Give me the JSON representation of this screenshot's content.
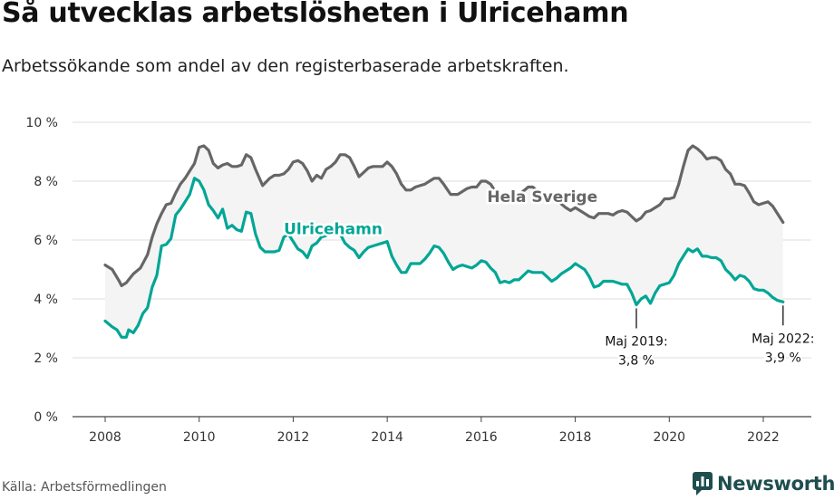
{
  "title": "Så utvecklas arbetslösheten i Ulricehamn",
  "subtitle": "Arbetssökande som andel av den registerbaserade arbetskraften.",
  "source": "Källa: Arbetsförmedlingen",
  "logo": {
    "text": "Newsworthy",
    "icon": "newsworthy-logo-icon",
    "color": "#1f4e4f"
  },
  "chart_data": {
    "type": "line",
    "title": "",
    "xlabel": "",
    "ylabel": "",
    "xlim": [
      2007.6,
      2023.1
    ],
    "ylim": [
      0,
      10
    ],
    "grid": true,
    "y_ticks": [
      0,
      2,
      4,
      6,
      8,
      10
    ],
    "y_tick_labels": [
      "0 %",
      "2 %",
      "4 %",
      "6 %",
      "8 %",
      "10 %"
    ],
    "x_ticks": [
      2008,
      2010,
      2012,
      2014,
      2016,
      2018,
      2020,
      2022
    ],
    "x_tick_labels": [
      "2008",
      "2010",
      "2012",
      "2014",
      "2016",
      "2018",
      "2020",
      "2022"
    ],
    "series": [
      {
        "name": "Hela Sverige",
        "color": "#666666",
        "points": [
          [
            2008.0,
            5.15
          ],
          [
            2008.15,
            5.0
          ],
          [
            2008.3,
            4.6
          ],
          [
            2008.35,
            4.45
          ],
          [
            2008.45,
            4.55
          ],
          [
            2008.6,
            4.85
          ],
          [
            2008.75,
            5.05
          ],
          [
            2008.9,
            5.5
          ],
          [
            2009.0,
            6.1
          ],
          [
            2009.1,
            6.55
          ],
          [
            2009.2,
            6.9
          ],
          [
            2009.3,
            7.2
          ],
          [
            2009.4,
            7.25
          ],
          [
            2009.5,
            7.6
          ],
          [
            2009.6,
            7.9
          ],
          [
            2009.7,
            8.1
          ],
          [
            2009.8,
            8.35
          ],
          [
            2009.9,
            8.6
          ],
          [
            2010.0,
            9.15
          ],
          [
            2010.1,
            9.2
          ],
          [
            2010.2,
            9.05
          ],
          [
            2010.3,
            8.6
          ],
          [
            2010.4,
            8.45
          ],
          [
            2010.5,
            8.55
          ],
          [
            2010.6,
            8.6
          ],
          [
            2010.7,
            8.5
          ],
          [
            2010.8,
            8.5
          ],
          [
            2010.9,
            8.55
          ],
          [
            2011.0,
            8.9
          ],
          [
            2011.1,
            8.8
          ],
          [
            2011.2,
            8.4
          ],
          [
            2011.35,
            7.85
          ],
          [
            2011.5,
            8.1
          ],
          [
            2011.6,
            8.2
          ],
          [
            2011.7,
            8.2
          ],
          [
            2011.8,
            8.25
          ],
          [
            2011.9,
            8.4
          ],
          [
            2012.0,
            8.65
          ],
          [
            2012.1,
            8.7
          ],
          [
            2012.2,
            8.6
          ],
          [
            2012.3,
            8.35
          ],
          [
            2012.4,
            8.0
          ],
          [
            2012.5,
            8.2
          ],
          [
            2012.6,
            8.1
          ],
          [
            2012.7,
            8.4
          ],
          [
            2012.8,
            8.5
          ],
          [
            2012.9,
            8.65
          ],
          [
            2013.0,
            8.9
          ],
          [
            2013.1,
            8.9
          ],
          [
            2013.2,
            8.8
          ],
          [
            2013.3,
            8.5
          ],
          [
            2013.4,
            8.15
          ],
          [
            2013.5,
            8.3
          ],
          [
            2013.6,
            8.45
          ],
          [
            2013.7,
            8.5
          ],
          [
            2013.8,
            8.5
          ],
          [
            2013.9,
            8.5
          ],
          [
            2014.0,
            8.65
          ],
          [
            2014.1,
            8.5
          ],
          [
            2014.2,
            8.25
          ],
          [
            2014.3,
            7.9
          ],
          [
            2014.4,
            7.7
          ],
          [
            2014.5,
            7.7
          ],
          [
            2014.6,
            7.8
          ],
          [
            2014.7,
            7.85
          ],
          [
            2014.8,
            7.9
          ],
          [
            2014.9,
            8.0
          ],
          [
            2015.0,
            8.1
          ],
          [
            2015.1,
            8.1
          ],
          [
            2015.2,
            7.9
          ],
          [
            2015.35,
            7.55
          ],
          [
            2015.5,
            7.55
          ],
          [
            2015.6,
            7.65
          ],
          [
            2015.7,
            7.75
          ],
          [
            2015.8,
            7.8
          ],
          [
            2015.9,
            7.8
          ],
          [
            2016.0,
            8.0
          ],
          [
            2016.1,
            8.0
          ],
          [
            2016.2,
            7.9
          ],
          [
            2016.3,
            7.65
          ],
          [
            2016.4,
            7.5
          ],
          [
            2016.55,
            7.45
          ],
          [
            2016.7,
            7.55
          ],
          [
            2016.85,
            7.6
          ],
          [
            2017.0,
            7.8
          ],
          [
            2017.1,
            7.8
          ],
          [
            2017.2,
            7.65
          ],
          [
            2017.35,
            7.4
          ],
          [
            2017.5,
            7.45
          ],
          [
            2017.65,
            7.3
          ],
          [
            2017.8,
            7.1
          ],
          [
            2017.9,
            7.0
          ],
          [
            2018.0,
            7.1
          ],
          [
            2018.1,
            7.0
          ],
          [
            2018.2,
            6.9
          ],
          [
            2018.3,
            6.8
          ],
          [
            2018.4,
            6.75
          ],
          [
            2018.5,
            6.9
          ],
          [
            2018.6,
            6.9
          ],
          [
            2018.7,
            6.9
          ],
          [
            2018.8,
            6.85
          ],
          [
            2018.9,
            6.95
          ],
          [
            2019.0,
            7.0
          ],
          [
            2019.1,
            6.95
          ],
          [
            2019.2,
            6.8
          ],
          [
            2019.3,
            6.65
          ],
          [
            2019.4,
            6.75
          ],
          [
            2019.5,
            6.95
          ],
          [
            2019.6,
            7.0
          ],
          [
            2019.7,
            7.1
          ],
          [
            2019.8,
            7.2
          ],
          [
            2019.9,
            7.4
          ],
          [
            2020.0,
            7.4
          ],
          [
            2020.1,
            7.45
          ],
          [
            2020.2,
            7.9
          ],
          [
            2020.3,
            8.5
          ],
          [
            2020.4,
            9.05
          ],
          [
            2020.5,
            9.2
          ],
          [
            2020.6,
            9.1
          ],
          [
            2020.7,
            8.95
          ],
          [
            2020.8,
            8.75
          ],
          [
            2020.9,
            8.8
          ],
          [
            2021.0,
            8.8
          ],
          [
            2021.1,
            8.7
          ],
          [
            2021.2,
            8.4
          ],
          [
            2021.3,
            8.25
          ],
          [
            2021.4,
            7.9
          ],
          [
            2021.5,
            7.9
          ],
          [
            2021.6,
            7.85
          ],
          [
            2021.7,
            7.6
          ],
          [
            2021.8,
            7.3
          ],
          [
            2021.9,
            7.2
          ],
          [
            2022.0,
            7.25
          ],
          [
            2022.1,
            7.3
          ],
          [
            2022.2,
            7.15
          ],
          [
            2022.3,
            6.9
          ],
          [
            2022.42,
            6.6
          ]
        ]
      },
      {
        "name": "Ulricehamn",
        "color": "#00a695",
        "points": [
          [
            2008.0,
            3.25
          ],
          [
            2008.15,
            3.05
          ],
          [
            2008.25,
            2.95
          ],
          [
            2008.35,
            2.7
          ],
          [
            2008.45,
            2.7
          ],
          [
            2008.5,
            2.95
          ],
          [
            2008.6,
            2.85
          ],
          [
            2008.7,
            3.1
          ],
          [
            2008.8,
            3.5
          ],
          [
            2008.9,
            3.7
          ],
          [
            2009.0,
            4.4
          ],
          [
            2009.1,
            4.8
          ],
          [
            2009.2,
            5.8
          ],
          [
            2009.3,
            5.85
          ],
          [
            2009.4,
            6.05
          ],
          [
            2009.5,
            6.85
          ],
          [
            2009.6,
            7.05
          ],
          [
            2009.7,
            7.3
          ],
          [
            2009.8,
            7.55
          ],
          [
            2009.9,
            8.1
          ],
          [
            2010.0,
            8.0
          ],
          [
            2010.1,
            7.7
          ],
          [
            2010.2,
            7.2
          ],
          [
            2010.3,
            7.0
          ],
          [
            2010.4,
            6.75
          ],
          [
            2010.5,
            7.05
          ],
          [
            2010.6,
            6.4
          ],
          [
            2010.7,
            6.5
          ],
          [
            2010.8,
            6.35
          ],
          [
            2010.9,
            6.3
          ],
          [
            2011.0,
            6.95
          ],
          [
            2011.1,
            6.9
          ],
          [
            2011.2,
            6.2
          ],
          [
            2011.3,
            5.75
          ],
          [
            2011.4,
            5.6
          ],
          [
            2011.5,
            5.6
          ],
          [
            2011.6,
            5.6
          ],
          [
            2011.7,
            5.65
          ],
          [
            2011.8,
            6.1
          ],
          [
            2011.9,
            6.2
          ],
          [
            2012.0,
            5.95
          ],
          [
            2012.1,
            5.7
          ],
          [
            2012.2,
            5.6
          ],
          [
            2012.3,
            5.4
          ],
          [
            2012.4,
            5.8
          ],
          [
            2012.5,
            5.9
          ],
          [
            2012.6,
            6.1
          ],
          [
            2012.7,
            6.15
          ],
          [
            2012.8,
            6.3
          ],
          [
            2012.9,
            6.35
          ],
          [
            2013.0,
            6.2
          ],
          [
            2013.1,
            5.9
          ],
          [
            2013.2,
            5.75
          ],
          [
            2013.3,
            5.65
          ],
          [
            2013.4,
            5.4
          ],
          [
            2013.5,
            5.6
          ],
          [
            2013.6,
            5.75
          ],
          [
            2013.7,
            5.8
          ],
          [
            2013.8,
            5.85
          ],
          [
            2013.9,
            5.9
          ],
          [
            2014.0,
            5.95
          ],
          [
            2014.1,
            5.45
          ],
          [
            2014.2,
            5.15
          ],
          [
            2014.3,
            4.9
          ],
          [
            2014.4,
            4.9
          ],
          [
            2014.5,
            5.2
          ],
          [
            2014.6,
            5.2
          ],
          [
            2014.7,
            5.2
          ],
          [
            2014.8,
            5.35
          ],
          [
            2014.9,
            5.55
          ],
          [
            2015.0,
            5.8
          ],
          [
            2015.1,
            5.75
          ],
          [
            2015.2,
            5.55
          ],
          [
            2015.3,
            5.25
          ],
          [
            2015.4,
            5.0
          ],
          [
            2015.5,
            5.1
          ],
          [
            2015.6,
            5.15
          ],
          [
            2015.7,
            5.1
          ],
          [
            2015.8,
            5.05
          ],
          [
            2015.9,
            5.15
          ],
          [
            2016.0,
            5.3
          ],
          [
            2016.1,
            5.25
          ],
          [
            2016.2,
            5.05
          ],
          [
            2016.3,
            4.9
          ],
          [
            2016.4,
            4.55
          ],
          [
            2016.5,
            4.6
          ],
          [
            2016.6,
            4.55
          ],
          [
            2016.7,
            4.65
          ],
          [
            2016.8,
            4.65
          ],
          [
            2016.9,
            4.8
          ],
          [
            2017.0,
            4.95
          ],
          [
            2017.1,
            4.9
          ],
          [
            2017.2,
            4.9
          ],
          [
            2017.3,
            4.9
          ],
          [
            2017.4,
            4.75
          ],
          [
            2017.5,
            4.6
          ],
          [
            2017.6,
            4.7
          ],
          [
            2017.7,
            4.85
          ],
          [
            2017.8,
            4.95
          ],
          [
            2017.9,
            5.05
          ],
          [
            2018.0,
            5.2
          ],
          [
            2018.1,
            5.1
          ],
          [
            2018.2,
            5.0
          ],
          [
            2018.3,
            4.75
          ],
          [
            2018.4,
            4.4
          ],
          [
            2018.5,
            4.45
          ],
          [
            2018.6,
            4.6
          ],
          [
            2018.7,
            4.6
          ],
          [
            2018.8,
            4.6
          ],
          [
            2018.9,
            4.55
          ],
          [
            2019.0,
            4.5
          ],
          [
            2019.1,
            4.5
          ],
          [
            2019.2,
            4.2
          ],
          [
            2019.3,
            3.8
          ],
          [
            2019.4,
            4.0
          ],
          [
            2019.5,
            4.1
          ],
          [
            2019.6,
            3.85
          ],
          [
            2019.7,
            4.2
          ],
          [
            2019.8,
            4.45
          ],
          [
            2019.9,
            4.5
          ],
          [
            2020.0,
            4.55
          ],
          [
            2020.1,
            4.8
          ],
          [
            2020.2,
            5.2
          ],
          [
            2020.3,
            5.45
          ],
          [
            2020.4,
            5.7
          ],
          [
            2020.5,
            5.6
          ],
          [
            2020.6,
            5.7
          ],
          [
            2020.7,
            5.45
          ],
          [
            2020.8,
            5.45
          ],
          [
            2020.9,
            5.4
          ],
          [
            2021.0,
            5.4
          ],
          [
            2021.1,
            5.3
          ],
          [
            2021.2,
            5.0
          ],
          [
            2021.3,
            4.85
          ],
          [
            2021.4,
            4.65
          ],
          [
            2021.5,
            4.8
          ],
          [
            2021.6,
            4.75
          ],
          [
            2021.7,
            4.6
          ],
          [
            2021.8,
            4.35
          ],
          [
            2021.9,
            4.3
          ],
          [
            2022.0,
            4.3
          ],
          [
            2022.1,
            4.2
          ],
          [
            2022.2,
            4.05
          ],
          [
            2022.3,
            3.95
          ],
          [
            2022.42,
            3.9
          ]
        ]
      }
    ],
    "annotations": [
      {
        "x": 2019.3,
        "y": 3.8,
        "lines": [
          "Maj 2019:",
          "3,8 %"
        ]
      },
      {
        "x": 2022.42,
        "y": 3.9,
        "lines": [
          "Maj 2022:",
          "3,9 %"
        ]
      }
    ],
    "series_labels": [
      {
        "text": "Hela Sverige",
        "x": 2017.3,
        "y": 7.3
      },
      {
        "text": "Ulricehamn",
        "x": 2012.85,
        "y": 6.2
      }
    ]
  }
}
